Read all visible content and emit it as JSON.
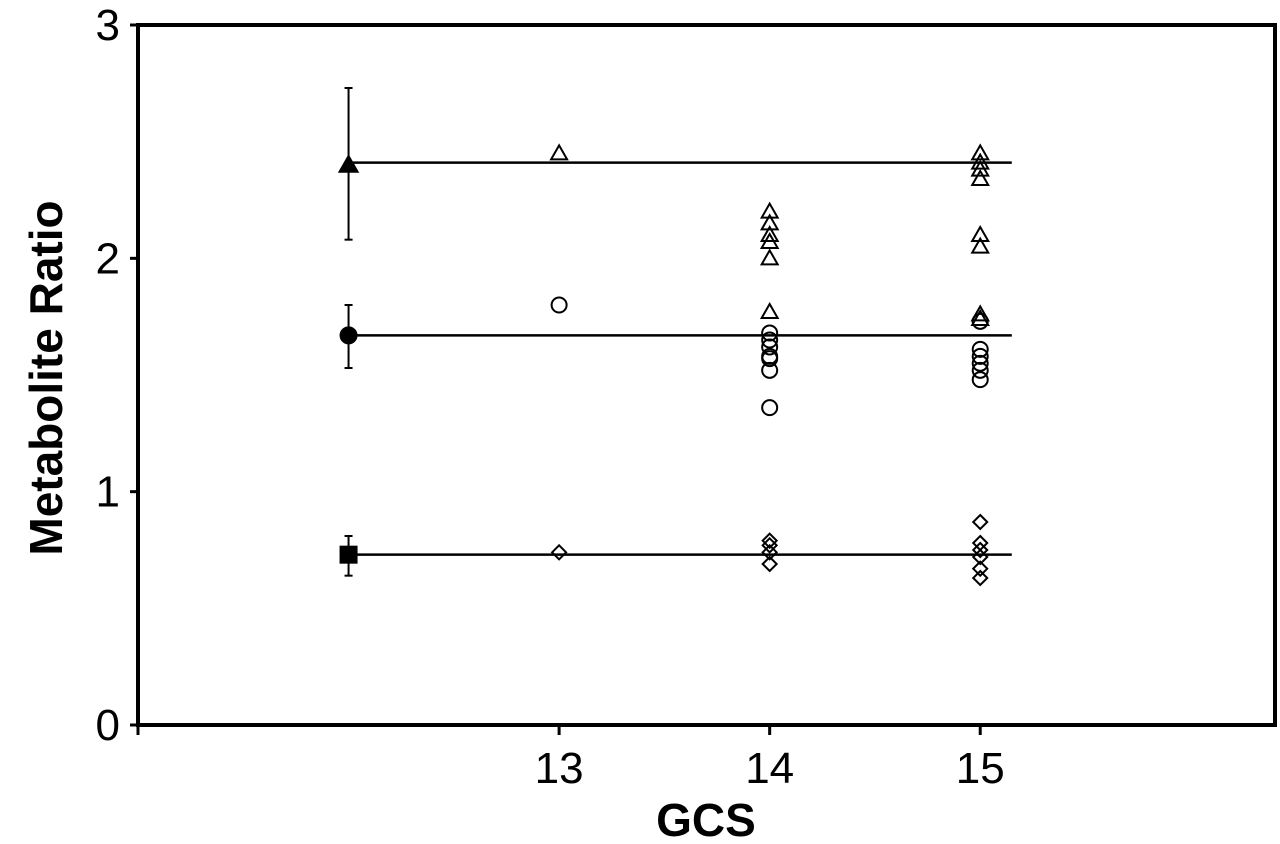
{
  "chart_data": {
    "type": "scatter",
    "xlabel": "GCS",
    "ylabel": "Metabolite Ratio",
    "ylim": [
      0,
      3
    ],
    "xlim": [
      11,
      16.4
    ],
    "yticks": [
      0,
      1,
      2,
      3
    ],
    "xticks": [
      13,
      14,
      15
    ],
    "grid": false,
    "legend": "none",
    "reference_lines": [
      {
        "marker": "triangle",
        "y": 2.41
      },
      {
        "marker": "circle",
        "y": 1.67
      },
      {
        "marker": "square",
        "y": 0.73
      }
    ],
    "summary_points": [
      {
        "marker": "triangle",
        "x": 12,
        "y": 2.4,
        "err_low": 2.08,
        "err_high": 2.73
      },
      {
        "marker": "circle",
        "x": 12,
        "y": 1.67,
        "err_low": 1.53,
        "err_high": 1.8
      },
      {
        "marker": "square",
        "x": 12,
        "y": 0.73,
        "err_low": 0.64,
        "err_high": 0.81
      }
    ],
    "series": [
      {
        "marker": "triangle",
        "points": [
          {
            "x": 13,
            "y": 2.45
          },
          {
            "x": 14,
            "y": 2.2
          },
          {
            "x": 14,
            "y": 2.15
          },
          {
            "x": 14,
            "y": 2.1
          },
          {
            "x": 14,
            "y": 2.07
          },
          {
            "x": 14,
            "y": 2.0
          },
          {
            "x": 14,
            "y": 1.77
          },
          {
            "x": 15,
            "y": 2.45
          },
          {
            "x": 15,
            "y": 2.41
          },
          {
            "x": 15,
            "y": 2.38
          },
          {
            "x": 15,
            "y": 2.34
          },
          {
            "x": 15,
            "y": 2.1
          },
          {
            "x": 15,
            "y": 2.05
          },
          {
            "x": 15,
            "y": 1.76
          },
          {
            "x": 15,
            "y": 1.74
          }
        ]
      },
      {
        "marker": "circle",
        "points": [
          {
            "x": 13,
            "y": 1.8
          },
          {
            "x": 14,
            "y": 1.68
          },
          {
            "x": 14,
            "y": 1.65
          },
          {
            "x": 14,
            "y": 1.62
          },
          {
            "x": 14,
            "y": 1.58
          },
          {
            "x": 14,
            "y": 1.57
          },
          {
            "x": 14,
            "y": 1.52
          },
          {
            "x": 14,
            "y": 1.36
          },
          {
            "x": 15,
            "y": 1.73
          },
          {
            "x": 15,
            "y": 1.61
          },
          {
            "x": 15,
            "y": 1.58
          },
          {
            "x": 15,
            "y": 1.55
          },
          {
            "x": 15,
            "y": 1.52
          },
          {
            "x": 15,
            "y": 1.48
          }
        ]
      },
      {
        "marker": "diamond",
        "points": [
          {
            "x": 13,
            "y": 0.74
          },
          {
            "x": 14,
            "y": 0.79
          },
          {
            "x": 14,
            "y": 0.77
          },
          {
            "x": 14,
            "y": 0.74
          },
          {
            "x": 14,
            "y": 0.69
          },
          {
            "x": 15,
            "y": 0.87
          },
          {
            "x": 15,
            "y": 0.78
          },
          {
            "x": 15,
            "y": 0.75
          },
          {
            "x": 15,
            "y": 0.72
          },
          {
            "x": 15,
            "y": 0.67
          },
          {
            "x": 15,
            "y": 0.63
          }
        ]
      }
    ]
  }
}
